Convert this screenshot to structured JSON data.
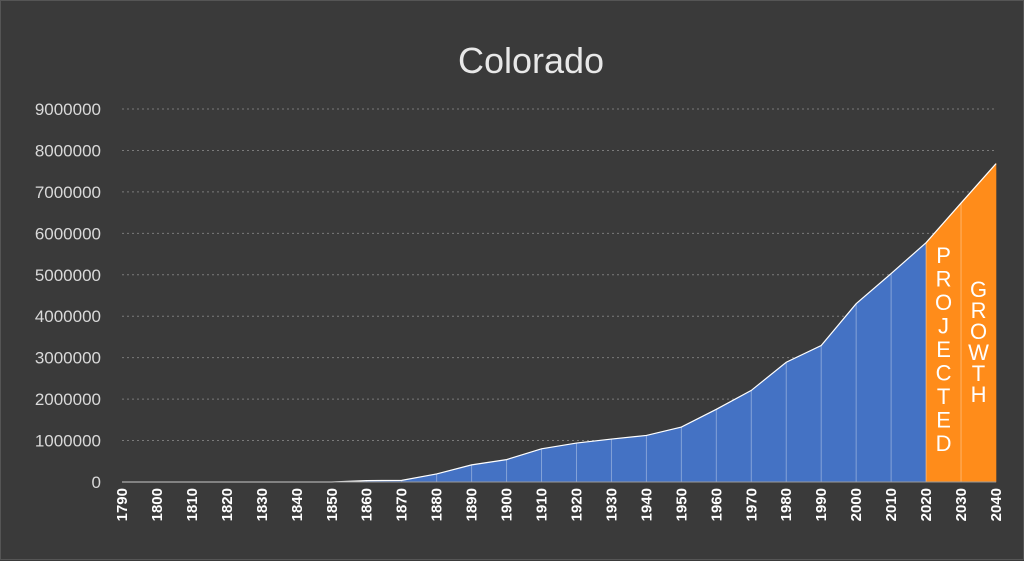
{
  "chart_data": {
    "type": "area",
    "title": "Colorado",
    "xlabel": "",
    "ylabel": "",
    "x": [
      1790,
      1800,
      1810,
      1820,
      1830,
      1840,
      1850,
      1860,
      1870,
      1880,
      1890,
      1900,
      1910,
      1920,
      1930,
      1940,
      1950,
      1960,
      1970,
      1980,
      1990,
      2000,
      2010,
      2020,
      2030,
      2040
    ],
    "y": [
      0,
      0,
      0,
      0,
      0,
      0,
      0,
      34000,
      40000,
      195000,
      413000,
      540000,
      800000,
      940000,
      1036000,
      1123000,
      1325000,
      1754000,
      2210000,
      2890000,
      3294000,
      4302000,
      5029000,
      5774000,
      6730000,
      7680000
    ],
    "projection_start": 2020,
    "ylim": [
      0,
      9000000
    ],
    "yticks": [
      "0",
      "1000000",
      "2000000",
      "3000000",
      "4000000",
      "5000000",
      "6000000",
      "7000000",
      "8000000",
      "9000000"
    ],
    "xticks": [
      "1790",
      "1800",
      "1810",
      "1820",
      "1830",
      "1840",
      "1850",
      "1860",
      "1870",
      "1880",
      "1890",
      "1900",
      "1910",
      "1920",
      "1930",
      "1940",
      "1950",
      "1960",
      "1970",
      "1980",
      "1990",
      "2000",
      "2010",
      "2020",
      "2030",
      "2040"
    ],
    "annotations": [
      "PROJECTED",
      "GROWTH"
    ],
    "grid": true,
    "colors": {
      "background": "#3a3a3a",
      "historical": "#4472c4",
      "projected": "#ff8c1a",
      "line": "#ffffff",
      "grid": "#7a7a7a"
    }
  }
}
